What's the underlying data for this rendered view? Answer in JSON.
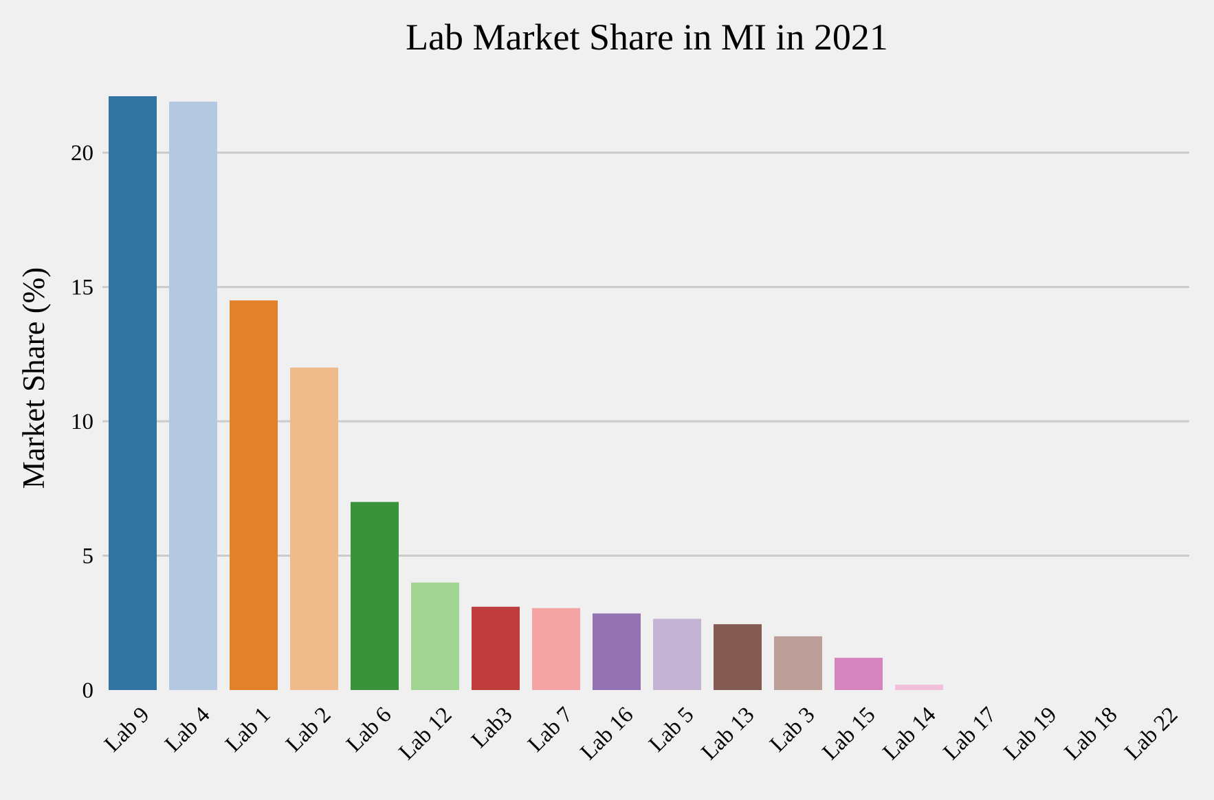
{
  "chart_data": {
    "type": "bar",
    "title": "Lab Market Share in MI in 2021",
    "xlabel": "",
    "ylabel": "Market Share (%)",
    "ylim": [
      0,
      22.1
    ],
    "yticks": [
      0,
      5,
      10,
      15,
      20
    ],
    "grid": "horizontal",
    "categories": [
      "Lab 9",
      "Lab 4",
      "Lab 1",
      "Lab 2",
      "Lab 6",
      "Lab 12",
      "Lab3",
      "Lab 7",
      "Lab 16",
      "Lab 5",
      "Lab 13",
      "Lab 3",
      "Lab 15",
      "Lab 14",
      "Lab 17",
      "Lab 19",
      "Lab 18",
      "Lab 22"
    ],
    "values": [
      22.1,
      21.9,
      14.5,
      12.0,
      7.0,
      4.0,
      3.1,
      3.05,
      2.85,
      2.65,
      2.45,
      2.0,
      1.2,
      0.2,
      0.0,
      0.0,
      0.0,
      0.0
    ],
    "colors": [
      "#3274a1",
      "#b5c8e2",
      "#e1812c",
      "#f0bb8b",
      "#3a923a",
      "#a2d494",
      "#c03d3e",
      "#f4a4a4",
      "#9372b2",
      "#c4b3d2",
      "#845b53",
      "#bd9f99",
      "#d684bd",
      "#f1c0d8",
      "#7f7f7f",
      "#c7c7c7",
      "#a9aa35",
      "#dbdb8d"
    ]
  }
}
